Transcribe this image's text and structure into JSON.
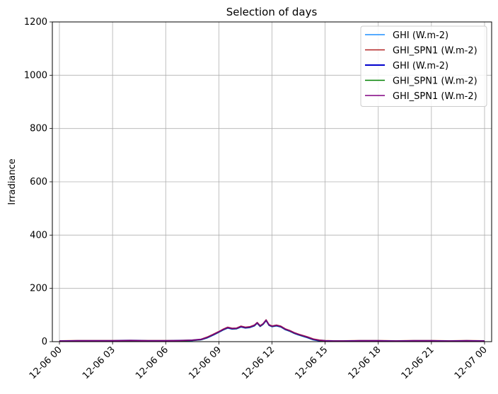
{
  "chart_data": {
    "type": "line",
    "title": "Selection of days",
    "xlabel": "",
    "ylabel": "Irradiance",
    "ylim": [
      0,
      1200
    ],
    "yticks": [
      0,
      200,
      400,
      600,
      800,
      1000,
      1200
    ],
    "xlim": [
      "2023-12-05 23:36",
      "2023-12-07 00:24"
    ],
    "xticks": [
      {
        "t": "2023-12-06 00:00",
        "label": "12-06 00"
      },
      {
        "t": "2023-12-06 03:00",
        "label": "12-06 03"
      },
      {
        "t": "2023-12-06 06:00",
        "label": "12-06 06"
      },
      {
        "t": "2023-12-06 09:00",
        "label": "12-06 09"
      },
      {
        "t": "2023-12-06 12:00",
        "label": "12-06 12"
      },
      {
        "t": "2023-12-06 15:00",
        "label": "12-06 15"
      },
      {
        "t": "2023-12-06 18:00",
        "label": "12-06 18"
      },
      {
        "t": "2023-12-06 21:00",
        "label": "12-06 21"
      },
      {
        "t": "2023-12-07 00:00",
        "label": "12-07 00"
      }
    ],
    "grid": true,
    "legend_position": "top-right",
    "x": [
      "2023-12-06 00:00",
      "2023-12-06 01:00",
      "2023-12-06 02:00",
      "2023-12-06 03:00",
      "2023-12-06 04:00",
      "2023-12-06 05:00",
      "2023-12-06 06:00",
      "2023-12-06 07:00",
      "2023-12-06 07:30",
      "2023-12-06 08:00",
      "2023-12-06 08:20",
      "2023-12-06 08:40",
      "2023-12-06 09:00",
      "2023-12-06 09:15",
      "2023-12-06 09:30",
      "2023-12-06 09:45",
      "2023-12-06 10:00",
      "2023-12-06 10:15",
      "2023-12-06 10:30",
      "2023-12-06 10:45",
      "2023-12-06 11:00",
      "2023-12-06 11:10",
      "2023-12-06 11:20",
      "2023-12-06 11:30",
      "2023-12-06 11:40",
      "2023-12-06 11:50",
      "2023-12-06 12:00",
      "2023-12-06 12:15",
      "2023-12-06 12:30",
      "2023-12-06 12:45",
      "2023-12-06 13:00",
      "2023-12-06 13:15",
      "2023-12-06 13:30",
      "2023-12-06 13:45",
      "2023-12-06 14:00",
      "2023-12-06 14:20",
      "2023-12-06 14:40",
      "2023-12-06 15:00",
      "2023-12-06 15:30",
      "2023-12-06 16:00",
      "2023-12-06 17:00",
      "2023-12-06 18:00",
      "2023-12-06 19:00",
      "2023-12-06 20:00",
      "2023-12-06 21:00",
      "2023-12-06 22:00",
      "2023-12-06 23:00",
      "2023-12-07 00:00"
    ],
    "series": [
      {
        "name": "GHI (W.m-2)",
        "color": "#1f8fff",
        "width": 1.5,
        "offset": 0.5,
        "values": [
          2,
          3,
          3,
          3,
          4,
          3,
          3,
          4,
          5,
          8,
          15,
          25,
          36,
          45,
          52,
          48,
          49,
          56,
          52,
          54,
          60,
          70,
          58,
          66,
          80,
          62,
          57,
          60,
          56,
          46,
          40,
          32,
          26,
          21,
          16,
          8,
          4,
          3,
          2,
          2,
          3,
          3,
          2,
          3,
          3,
          2,
          3,
          2
        ]
      },
      {
        "name": "GHI_SPN1 (W.m-2)",
        "color": "#b22222",
        "width": 1.5,
        "offset": -0.5,
        "values": [
          2,
          3,
          3,
          3,
          4,
          3,
          3,
          4,
          5,
          8,
          16,
          26,
          37,
          46,
          53,
          49,
          50,
          57,
          53,
          55,
          61,
          71,
          59,
          67,
          81,
          63,
          58,
          61,
          57,
          47,
          41,
          33,
          27,
          22,
          17,
          9,
          5,
          3,
          2,
          2,
          3,
          3,
          2,
          3,
          3,
          2,
          3,
          2
        ]
      },
      {
        "name": "GHI (W.m-2)",
        "color": "#0000cd",
        "width": 2,
        "offset": 0,
        "values": [
          2,
          3,
          3,
          3,
          4,
          3,
          3,
          4,
          5,
          8,
          15,
          25,
          36,
          45,
          52,
          48,
          49,
          56,
          52,
          54,
          60,
          70,
          58,
          66,
          80,
          62,
          57,
          60,
          56,
          46,
          40,
          32,
          26,
          21,
          16,
          8,
          4,
          3,
          2,
          2,
          3,
          3,
          2,
          3,
          3,
          2,
          3,
          2
        ]
      },
      {
        "name": "GHI_SPN1 (W.m-2)",
        "color": "#008000",
        "width": 1.5,
        "offset": 0.3,
        "values": [
          2,
          3,
          3,
          3,
          4,
          3,
          3,
          4,
          5,
          8,
          16,
          26,
          37,
          46,
          53,
          49,
          50,
          57,
          53,
          55,
          61,
          71,
          59,
          67,
          81,
          63,
          58,
          61,
          57,
          47,
          41,
          33,
          27,
          22,
          17,
          9,
          5,
          3,
          2,
          2,
          3,
          3,
          2,
          3,
          3,
          2,
          3,
          2
        ]
      },
      {
        "name": "GHI_SPN1 (W.m-2)",
        "color": "#800080",
        "width": 1.5,
        "offset": 0,
        "values": [
          2,
          3,
          3,
          3,
          4,
          3,
          3,
          4,
          5,
          8,
          16,
          26,
          37,
          46,
          53,
          49,
          50,
          57,
          53,
          55,
          61,
          71,
          59,
          67,
          81,
          63,
          58,
          61,
          57,
          47,
          41,
          33,
          27,
          22,
          17,
          9,
          5,
          3,
          2,
          2,
          3,
          3,
          2,
          3,
          3,
          2,
          3,
          2
        ]
      }
    ]
  }
}
